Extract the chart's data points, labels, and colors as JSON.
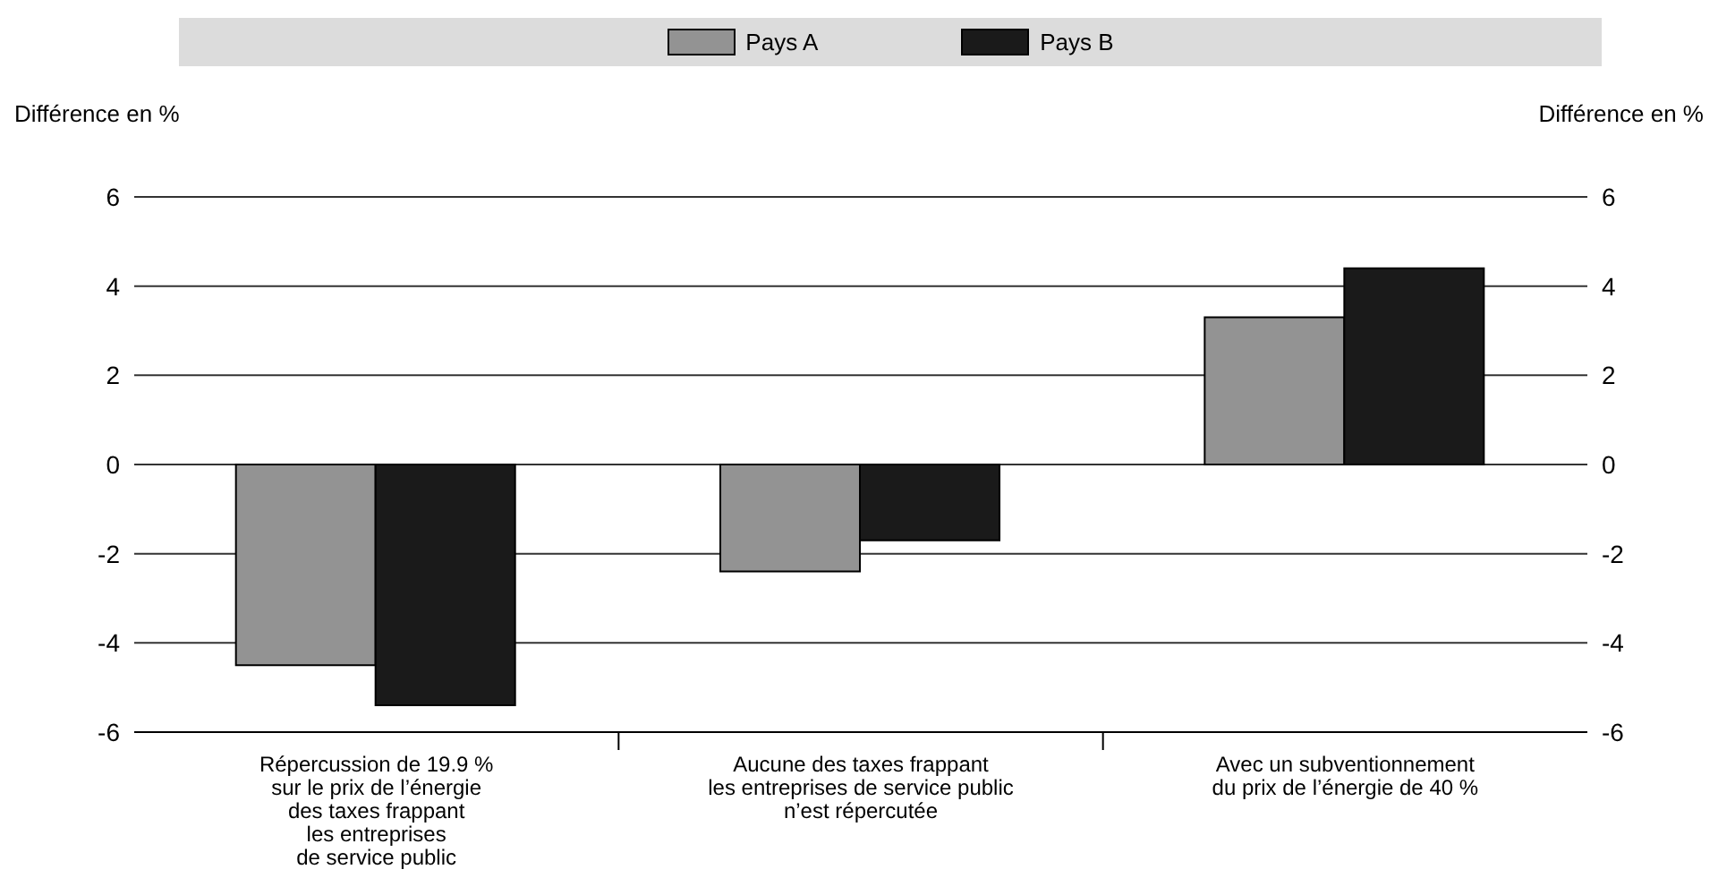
{
  "chart_data": {
    "type": "bar",
    "categories": [
      "Répercussion de 19.9 %\nsur le prix de l’énergie\ndes taxes frappant\nles entreprises\nde service public",
      "Aucune des taxes frappant\nles entreprises de service public\nn’est répercutée",
      "Avec un subventionnement\ndu prix de l’énergie de 40 %"
    ],
    "series": [
      {
        "name": "Pays A",
        "color": "#939393",
        "values": [
          -4.5,
          -2.4,
          3.3
        ]
      },
      {
        "name": "Pays B",
        "color": "#1a1a1a",
        "values": [
          -5.4,
          -1.7,
          4.4
        ]
      }
    ],
    "ylabel": "Différence en %",
    "y2label": "Différence en %",
    "ylim": [
      -6,
      6
    ],
    "yticks": [
      -6,
      -4,
      -2,
      0,
      2,
      4,
      6
    ],
    "y2lim": [
      -6,
      6
    ],
    "y2ticks": [
      -6,
      -4,
      -2,
      0,
      2,
      4,
      6
    ],
    "grid": "y",
    "legend": "top"
  }
}
